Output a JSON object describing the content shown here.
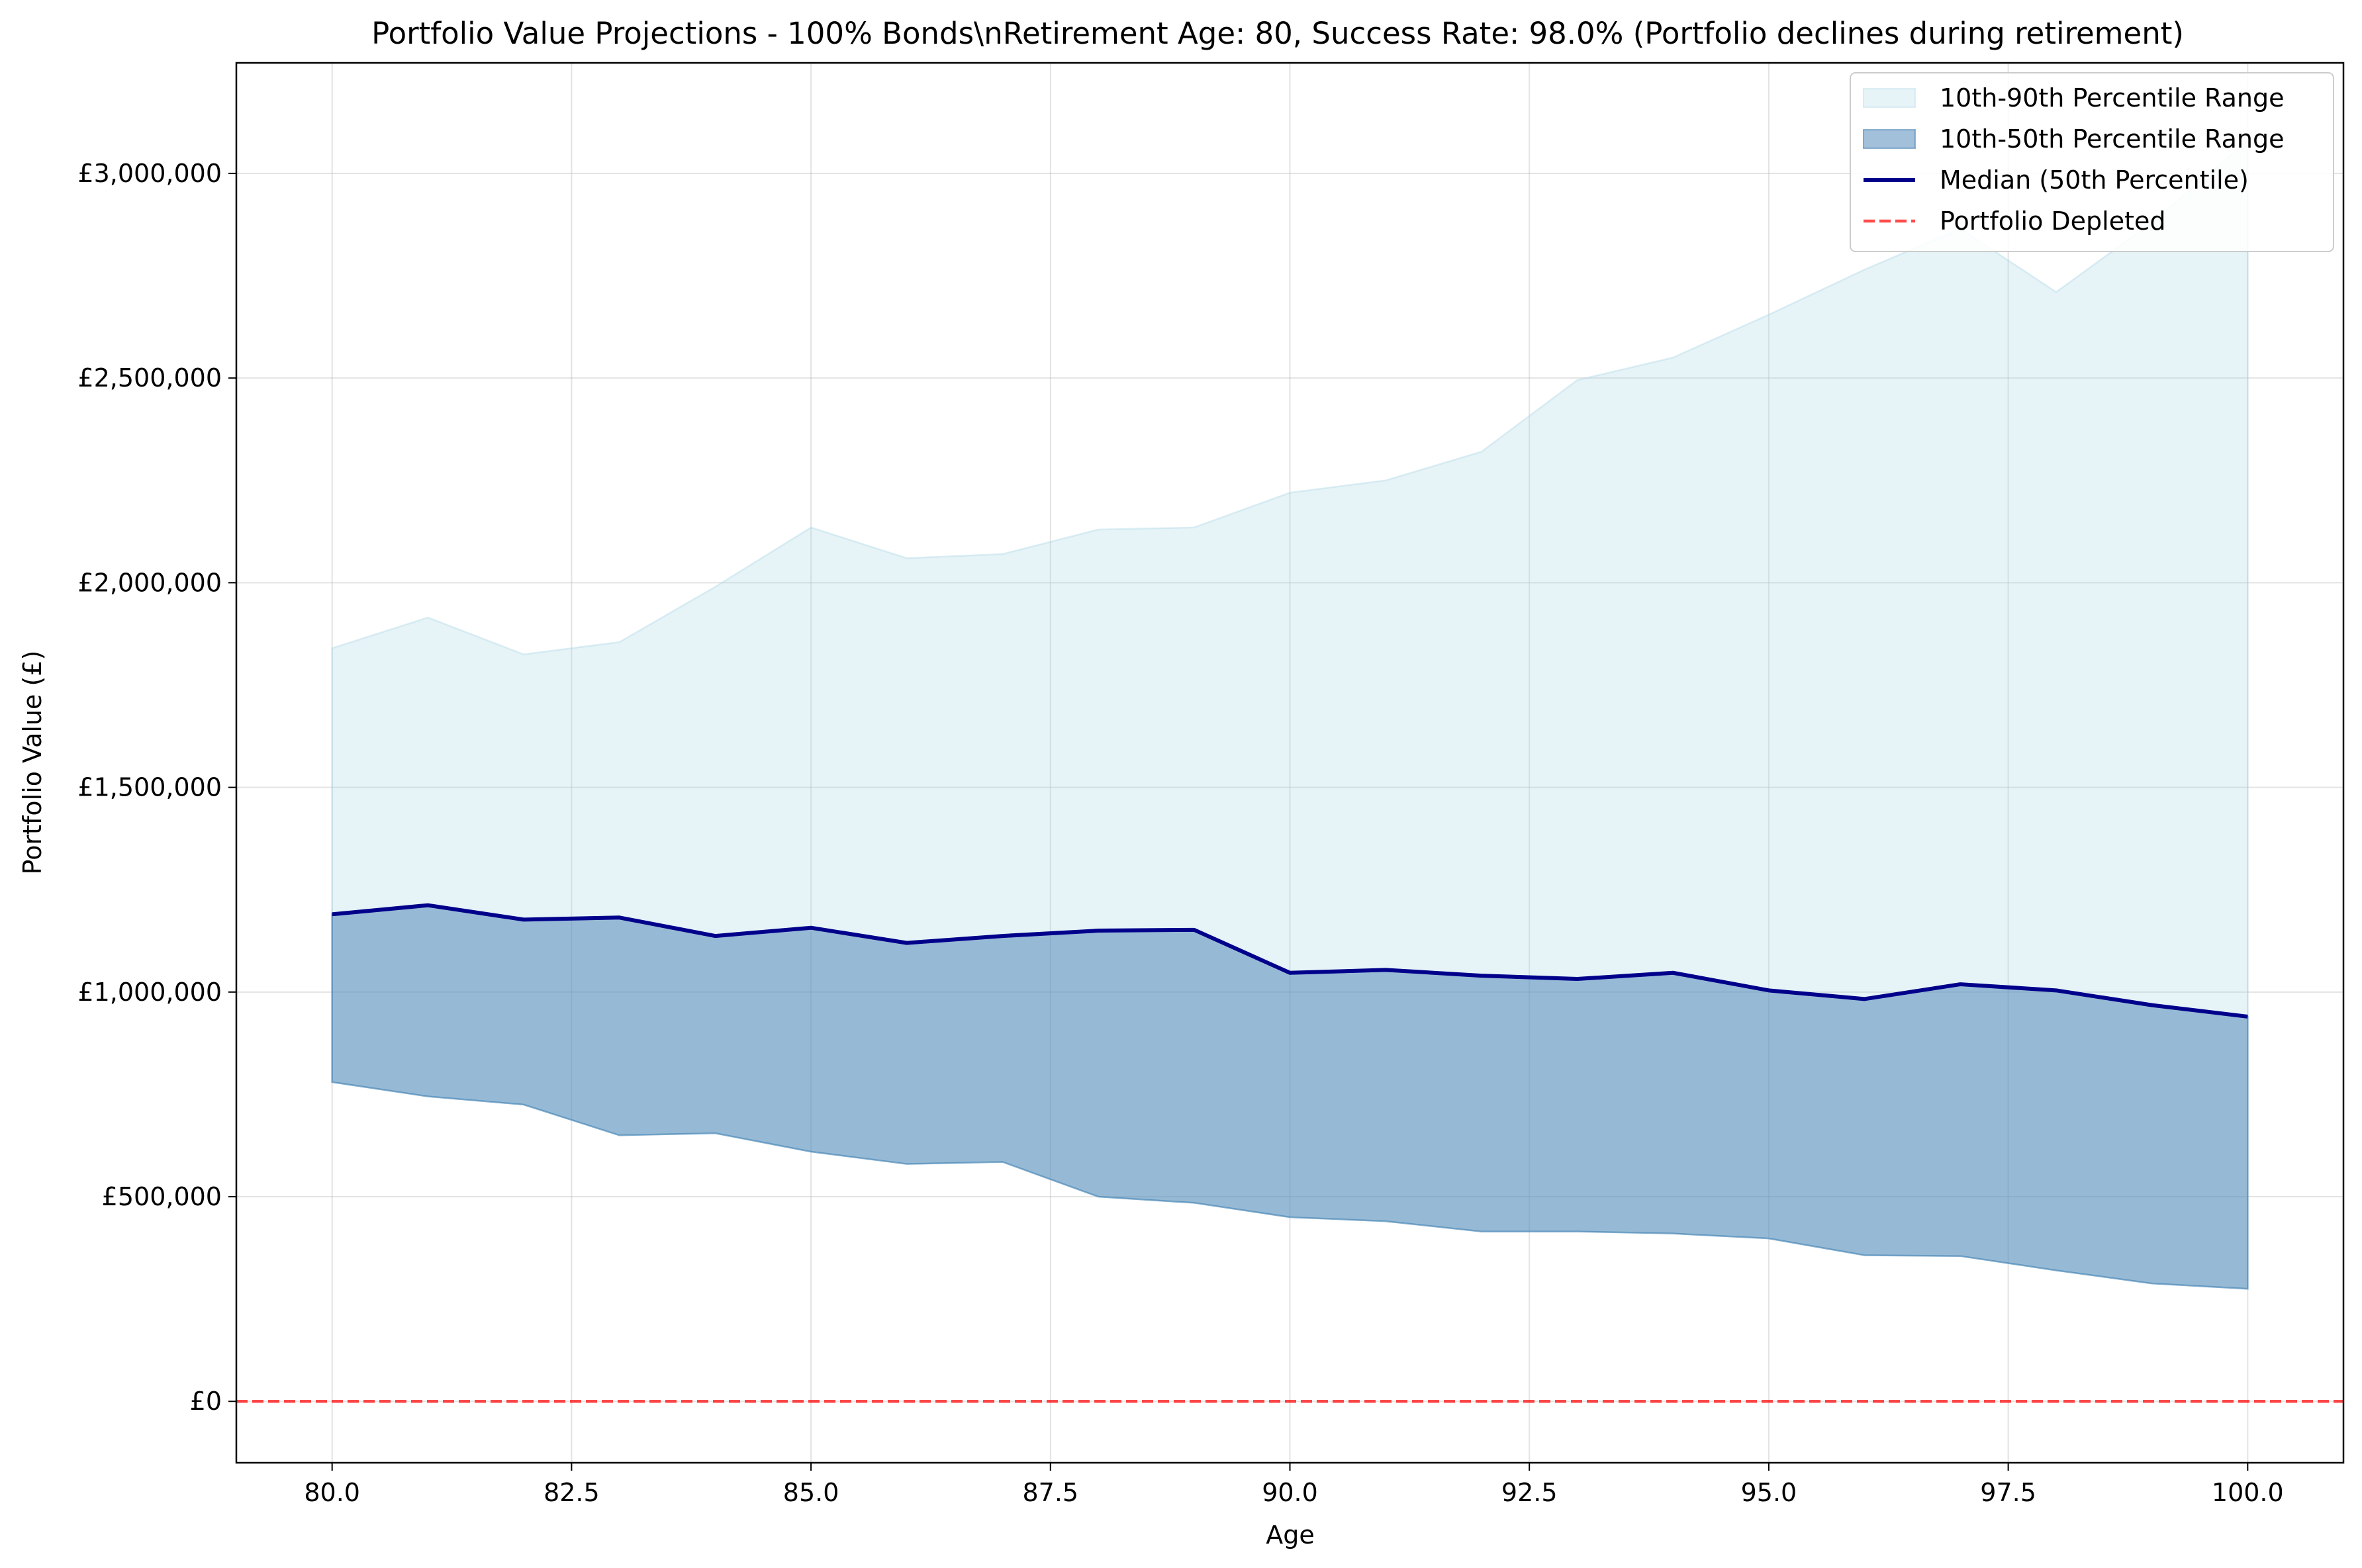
{
  "chart_data": {
    "type": "area",
    "title": "Portfolio Value Projections - 100% Bonds\\nRetirement Age: 80, Success Rate: 98.0% (Portfolio declines during retirement)",
    "xlabel": "Age",
    "ylabel": "Portfolio Value (£)",
    "xlim": [
      79,
      101
    ],
    "ylim": [
      -150000,
      3270000
    ],
    "x_ticks": [
      80,
      82.5,
      85,
      87.5,
      90,
      92.5,
      95,
      97.5,
      100
    ],
    "x_tick_labels": [
      "80.0",
      "82.5",
      "85.0",
      "87.5",
      "90.0",
      "92.5",
      "95.0",
      "97.5",
      "100.0"
    ],
    "y_ticks": [
      0,
      500000,
      1000000,
      1500000,
      2000000,
      2500000,
      3000000
    ],
    "y_tick_labels": [
      "£0",
      "£500,000",
      "£1,000,000",
      "£1,500,000",
      "£2,000,000",
      "£2,500,000",
      "£3,000,000"
    ],
    "grid": true,
    "legend_position": "top-right",
    "x": [
      80,
      81,
      82,
      83,
      84,
      85,
      86,
      87,
      88,
      89,
      90,
      91,
      92,
      93,
      94,
      95,
      96,
      97,
      98,
      99,
      100
    ],
    "series": [
      {
        "name": "10th-90th Percentile Range",
        "kind": "band",
        "color": "#add8e6",
        "lower": [
          780000,
          745000,
          725000,
          650000,
          655000,
          610000,
          580000,
          585000,
          500000,
          485000,
          450000,
          440000,
          415000,
          415000,
          410000,
          398000,
          357000,
          355000,
          320000,
          288000,
          275000
        ],
        "upper": [
          1840000,
          1915000,
          1825000,
          1855000,
          1990000,
          2135000,
          2060000,
          2070000,
          2130000,
          2135000,
          2220000,
          2250000,
          2320000,
          2495000,
          2550000,
          2655000,
          2765000,
          2865000,
          2710000,
          2880000,
          3080000
        ]
      },
      {
        "name": "10th-50th Percentile Range",
        "kind": "band",
        "color": "#4682b4",
        "lower": [
          780000,
          745000,
          725000,
          650000,
          655000,
          610000,
          580000,
          585000,
          500000,
          485000,
          450000,
          440000,
          415000,
          415000,
          410000,
          398000,
          357000,
          355000,
          320000,
          288000,
          275000
        ],
        "upper": [
          1190000,
          1212000,
          1177000,
          1182000,
          1137000,
          1157000,
          1120000,
          1137000,
          1150000,
          1152000,
          1047000,
          1054000,
          1040000,
          1032000,
          1047000,
          1004000,
          983000,
          1019000,
          1004000,
          968000,
          940000
        ]
      },
      {
        "name": "Median (50th Percentile)",
        "kind": "line",
        "color": "#00008b",
        "values": [
          1190000,
          1212000,
          1177000,
          1182000,
          1137000,
          1157000,
          1120000,
          1137000,
          1150000,
          1152000,
          1047000,
          1054000,
          1040000,
          1032000,
          1047000,
          1004000,
          983000,
          1019000,
          1004000,
          968000,
          940000
        ]
      },
      {
        "name": "Portfolio Depleted",
        "kind": "hline",
        "color": "#ff0000",
        "y": 0
      }
    ]
  }
}
